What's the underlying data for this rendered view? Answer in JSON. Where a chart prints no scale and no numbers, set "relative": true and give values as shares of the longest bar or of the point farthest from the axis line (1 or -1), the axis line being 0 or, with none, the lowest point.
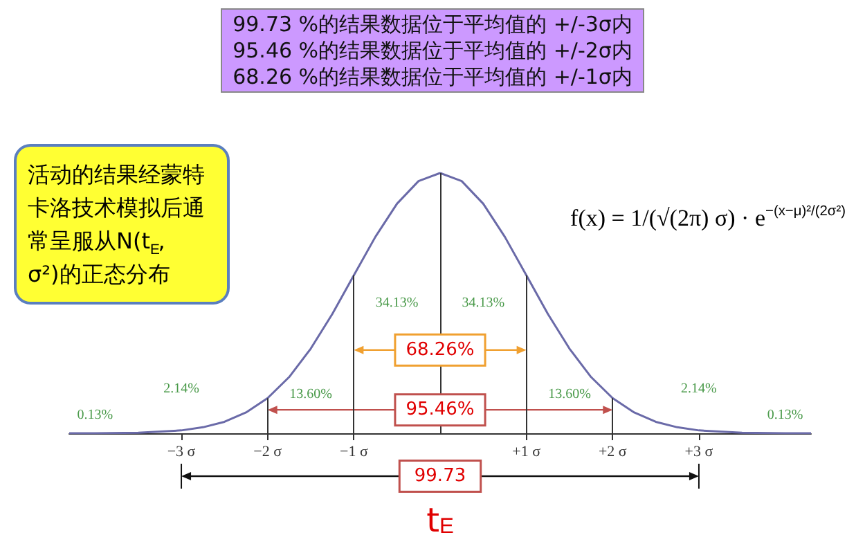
{
  "chart_data": {
    "type": "line",
    "relative": true,
    "title": "99.73 %的结果数据位于平均值的 +/-3σ内\n95.46 %的结果数据位于平均值的 +/-2σ内\n68.26 %的结果数据位于平均值的 +/-1σ内",
    "xlabel": "t$_{E}$",
    "x": [
      -4.3,
      -4,
      -3.5,
      -3,
      -2.75,
      -2.5,
      -2.25,
      -2,
      -1.75,
      -1.5,
      -1.25,
      -1,
      -0.75,
      -0.5,
      -0.25,
      0,
      0.25,
      0.5,
      0.75,
      1,
      1.25,
      1.5,
      1.75,
      2,
      2.25,
      2.5,
      2.75,
      3,
      3.5,
      4,
      4.3
    ],
    "series": [
      {
        "color": "#6a6aa8",
        "values": [
          0,
          0,
          0.002,
          0.011,
          0.023,
          0.044,
          0.08,
          0.135,
          0.216,
          0.325,
          0.458,
          0.607,
          0.755,
          0.882,
          0.969,
          1,
          0.969,
          0.882,
          0.755,
          0.607,
          0.458,
          0.325,
          0.216,
          0.135,
          0.08,
          0.044,
          0.023,
          0.011,
          0.002,
          0,
          0
        ]
      }
    ],
    "xlim": [
      -4.3,
      4.3
    ],
    "xticks": [
      {
        "value": -3,
        "label": "−3 σ"
      },
      {
        "value": -2,
        "label": "−2 σ"
      },
      {
        "value": -1,
        "label": "−1 σ"
      },
      {
        "value": 1,
        "label": "+1 σ"
      },
      {
        "value": 2,
        "label": "+2 σ"
      },
      {
        "value": 3,
        "label": "+3 σ"
      }
    ],
    "ref_lines": [
      {
        "axis": "x",
        "value": -2,
        "color": "#333333"
      },
      {
        "axis": "x",
        "value": -1,
        "color": "#333333"
      },
      {
        "axis": "x",
        "value": 0,
        "color": "#333333"
      },
      {
        "axis": "x",
        "value": 1,
        "color": "#333333"
      },
      {
        "axis": "x",
        "value": 2,
        "color": "#333333"
      }
    ],
    "annotations": [
      "活动的结果经蒙特卡洛技术模拟后通常呈服从N(t$_{E}$, σ²)的正态分布",
      "f(x) = 1/(√(2π) σ) · e$^{−(x−μ)²/(2σ²)}$",
      "99.73",
      {
        "text": "68.26%",
        "x": 0,
        "y": 0.32
      },
      {
        "text": "95.46%",
        "x": 0,
        "y": 0.09
      },
      "34.13%",
      "34.13%",
      "13.60%",
      "13.60%",
      "2.14%",
      "2.14%",
      "0.13%",
      "0.13%"
    ],
    "marker": "none",
    "line_style": "solid"
  }
}
